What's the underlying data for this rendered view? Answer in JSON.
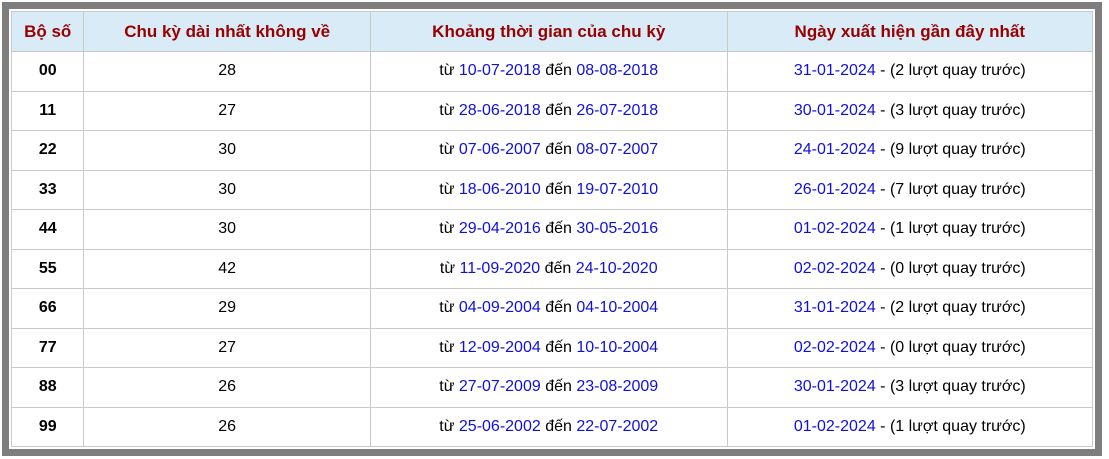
{
  "colors": {
    "frame_border": "#7e7e7e",
    "header_bg": "#d9ebf6",
    "header_text": "#990000",
    "cell_border": "#c9c9c9",
    "date_link": "#0f0fe0",
    "body_text": "#000000",
    "background": "#ffffff"
  },
  "table": {
    "columns": [
      {
        "label": "Bộ số"
      },
      {
        "label": "Chu kỳ dài nhất không về"
      },
      {
        "label": "Khoảng thời gian của chu kỳ"
      },
      {
        "label": "Ngày xuất hiện gần đây nhất"
      }
    ],
    "rows": [
      {
        "pair": "00",
        "cycle": "28",
        "from_label": "từ",
        "from_date": "10-07-2018",
        "to_label": "đến",
        "to_date": "08-08-2018",
        "last_date": "31-01-2024",
        "last_note": "- (2 lượt quay trước)"
      },
      {
        "pair": "11",
        "cycle": "27",
        "from_label": "từ",
        "from_date": "28-06-2018",
        "to_label": "đến",
        "to_date": "26-07-2018",
        "last_date": "30-01-2024",
        "last_note": "- (3 lượt quay trước)"
      },
      {
        "pair": "22",
        "cycle": "30",
        "from_label": "từ",
        "from_date": "07-06-2007",
        "to_label": "đến",
        "to_date": "08-07-2007",
        "last_date": "24-01-2024",
        "last_note": "- (9 lượt quay trước)"
      },
      {
        "pair": "33",
        "cycle": "30",
        "from_label": "từ",
        "from_date": "18-06-2010",
        "to_label": "đến",
        "to_date": "19-07-2010",
        "last_date": "26-01-2024",
        "last_note": "- (7 lượt quay trước)"
      },
      {
        "pair": "44",
        "cycle": "30",
        "from_label": "từ",
        "from_date": "29-04-2016",
        "to_label": "đến",
        "to_date": "30-05-2016",
        "last_date": "01-02-2024",
        "last_note": "- (1 lượt quay trước)"
      },
      {
        "pair": "55",
        "cycle": "42",
        "from_label": "từ",
        "from_date": "11-09-2020",
        "to_label": "đến",
        "to_date": "24-10-2020",
        "last_date": "02-02-2024",
        "last_note": "- (0 lượt quay trước)"
      },
      {
        "pair": "66",
        "cycle": "29",
        "from_label": "từ",
        "from_date": "04-09-2004",
        "to_label": "đến",
        "to_date": "04-10-2004",
        "last_date": "31-01-2024",
        "last_note": "- (2 lượt quay trước)"
      },
      {
        "pair": "77",
        "cycle": "27",
        "from_label": "từ",
        "from_date": "12-09-2004",
        "to_label": "đến",
        "to_date": "10-10-2004",
        "last_date": "02-02-2024",
        "last_note": "- (0 lượt quay trước)"
      },
      {
        "pair": "88",
        "cycle": "26",
        "from_label": "từ",
        "from_date": "27-07-2009",
        "to_label": "đến",
        "to_date": "23-08-2009",
        "last_date": "30-01-2024",
        "last_note": "- (3 lượt quay trước)"
      },
      {
        "pair": "99",
        "cycle": "26",
        "from_label": "từ",
        "from_date": "25-06-2002",
        "to_label": "đến",
        "to_date": "22-07-2002",
        "last_date": "01-02-2024",
        "last_note": "- (1 lượt quay trước)"
      }
    ]
  }
}
